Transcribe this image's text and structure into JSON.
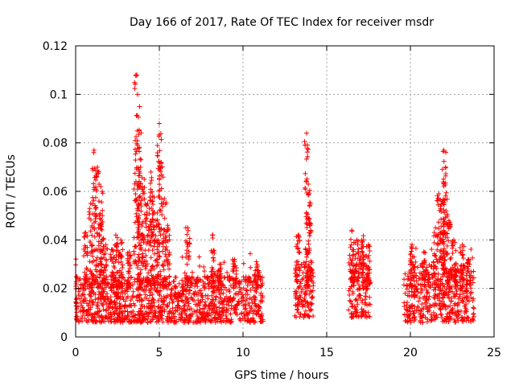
{
  "chart_data": {
    "type": "scatter",
    "title": "Day 166 of 2017, Rate Of TEC Index for receiver msdr",
    "xlabel": "GPS time / hours",
    "ylabel": "ROTI / TECUs",
    "xlim": [
      0,
      25
    ],
    "ylim": [
      0,
      0.12
    ],
    "xticks": [
      "0",
      "5",
      "10",
      "15",
      "20",
      "25"
    ],
    "yticks": [
      "0",
      "0.02",
      "0.04",
      "0.06",
      "0.08",
      "0.1",
      "0.12"
    ],
    "grid": true,
    "marker": "+",
    "color": "#ff0000",
    "clusters": [
      {
        "x_range": [
          0.0,
          11.2
        ],
        "y_base": [
          0.006,
          0.025
        ],
        "note": "dense band"
      },
      {
        "x_range": [
          13.1,
          14.2
        ],
        "y_base": [
          0.008,
          0.03
        ]
      },
      {
        "x_range": [
          16.3,
          17.6
        ],
        "y_base": [
          0.008,
          0.035
        ]
      },
      {
        "x_range": [
          19.6,
          23.8
        ],
        "y_base": [
          0.006,
          0.03
        ]
      }
    ],
    "peaks": [
      {
        "x": 0.6,
        "y": 0.043
      },
      {
        "x": 0.9,
        "y": 0.055
      },
      {
        "x": 1.1,
        "y": 0.077
      },
      {
        "x": 1.3,
        "y": 0.07
      },
      {
        "x": 1.5,
        "y": 0.062
      },
      {
        "x": 1.6,
        "y": 0.05
      },
      {
        "x": 1.8,
        "y": 0.038
      },
      {
        "x": 2.2,
        "y": 0.036
      },
      {
        "x": 2.4,
        "y": 0.042
      },
      {
        "x": 2.7,
        "y": 0.04
      },
      {
        "x": 3.2,
        "y": 0.035
      },
      {
        "x": 3.6,
        "y": 0.108
      },
      {
        "x": 3.7,
        "y": 0.1
      },
      {
        "x": 3.8,
        "y": 0.085
      },
      {
        "x": 3.9,
        "y": 0.073
      },
      {
        "x": 4.1,
        "y": 0.065
      },
      {
        "x": 4.3,
        "y": 0.055
      },
      {
        "x": 4.5,
        "y": 0.068
      },
      {
        "x": 4.6,
        "y": 0.058
      },
      {
        "x": 4.8,
        "y": 0.048
      },
      {
        "x": 5.0,
        "y": 0.088
      },
      {
        "x": 5.1,
        "y": 0.072
      },
      {
        "x": 5.3,
        "y": 0.057
      },
      {
        "x": 5.5,
        "y": 0.046
      },
      {
        "x": 6.7,
        "y": 0.045
      },
      {
        "x": 8.2,
        "y": 0.042
      },
      {
        "x": 8.6,
        "y": 0.03
      },
      {
        "x": 9.5,
        "y": 0.032
      },
      {
        "x": 10.8,
        "y": 0.031
      },
      {
        "x": 13.3,
        "y": 0.042
      },
      {
        "x": 13.8,
        "y": 0.084
      },
      {
        "x": 13.9,
        "y": 0.063
      },
      {
        "x": 14.0,
        "y": 0.047
      },
      {
        "x": 16.5,
        "y": 0.044
      },
      {
        "x": 16.8,
        "y": 0.04
      },
      {
        "x": 17.2,
        "y": 0.04
      },
      {
        "x": 17.5,
        "y": 0.038
      },
      {
        "x": 20.1,
        "y": 0.038
      },
      {
        "x": 20.8,
        "y": 0.035
      },
      {
        "x": 21.5,
        "y": 0.045
      },
      {
        "x": 21.7,
        "y": 0.059
      },
      {
        "x": 21.9,
        "y": 0.056
      },
      {
        "x": 22.0,
        "y": 0.077
      },
      {
        "x": 22.1,
        "y": 0.07
      },
      {
        "x": 22.3,
        "y": 0.048
      },
      {
        "x": 22.6,
        "y": 0.04
      },
      {
        "x": 23.1,
        "y": 0.038
      },
      {
        "x": 23.5,
        "y": 0.032
      }
    ]
  }
}
